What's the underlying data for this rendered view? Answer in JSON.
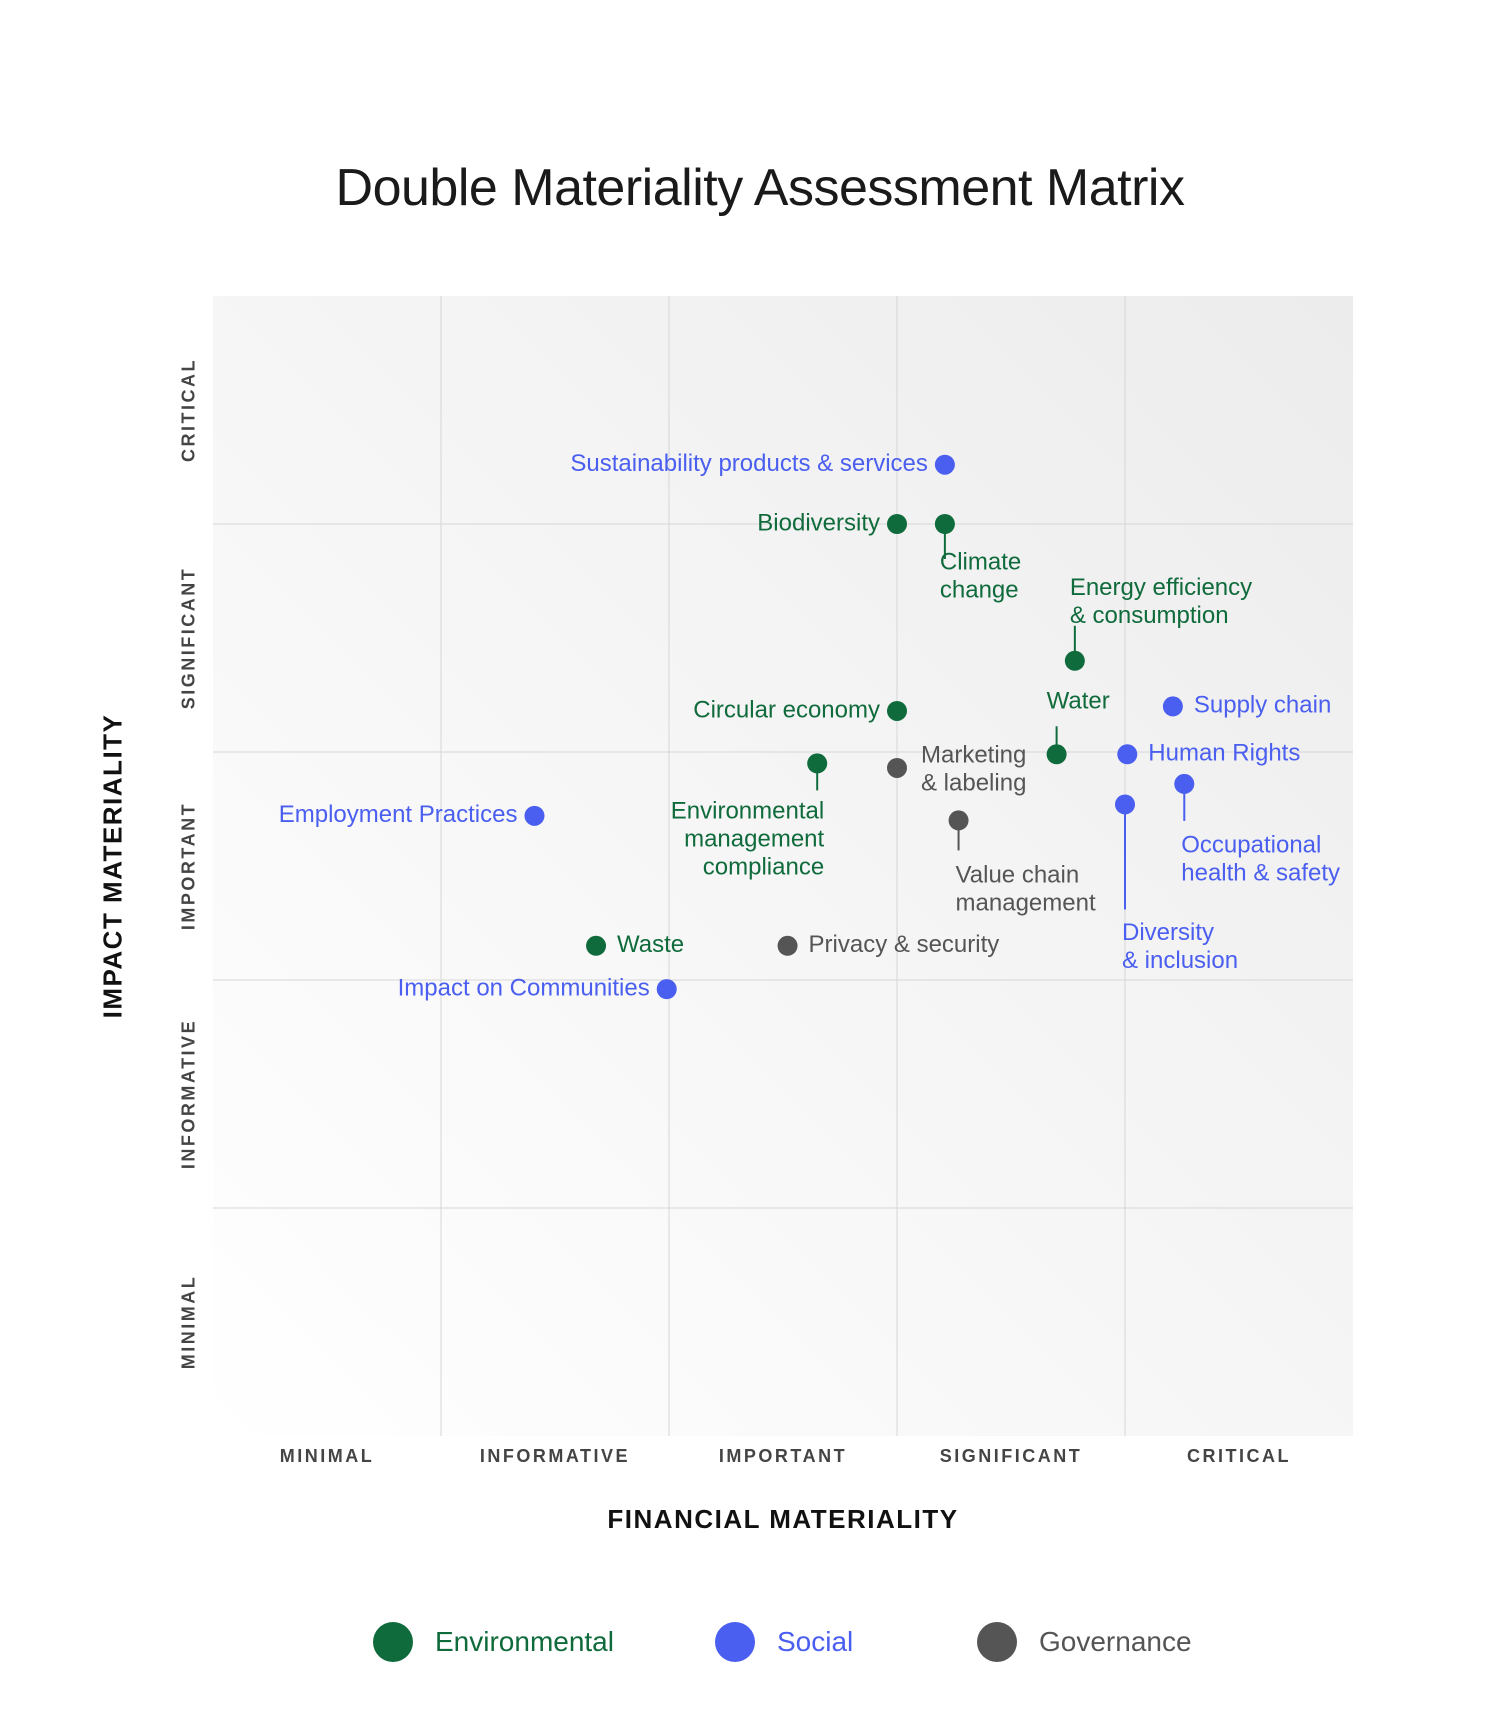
{
  "chart_data": {
    "type": "scatter",
    "title": "Double Materiality Assessment Matrix",
    "xlabel": "FINANCIAL MATERIALITY",
    "ylabel": "IMPACT MATERIALITY",
    "x_categories": [
      "MINIMAL",
      "INFORMATIVE",
      "IMPORTANT",
      "SIGNIFICANT",
      "CRITICAL"
    ],
    "y_categories": [
      "MINIMAL",
      "INFORMATIVE",
      "IMPORTANT",
      "SIGNIFICANT",
      "CRITICAL"
    ],
    "xlim": [
      0,
      5
    ],
    "ylim": [
      0,
      5
    ],
    "grid": true,
    "legend_position": "bottom",
    "colors": {
      "Environmental": "#106b3c",
      "Social": "#4a5ef0",
      "Governance": "#555555"
    },
    "series": [
      {
        "name": "Environmental",
        "points": [
          {
            "label": "Biodiversity",
            "x": 3.0,
            "y": 4.0
          },
          {
            "label": "Climate change",
            "x": 3.21,
            "y": 4.0
          },
          {
            "label": "Energy efficiency & consumption",
            "x": 3.78,
            "y": 3.4
          },
          {
            "label": "Circular economy",
            "x": 3.0,
            "y": 3.18
          },
          {
            "label": "Water",
            "x": 3.7,
            "y": 2.99
          },
          {
            "label": "Environmental management compliance",
            "x": 2.65,
            "y": 2.95
          },
          {
            "label": "Waste",
            "x": 1.68,
            "y": 2.15
          }
        ]
      },
      {
        "name": "Social",
        "points": [
          {
            "label": "Sustainability products & services",
            "x": 3.21,
            "y": 4.26
          },
          {
            "label": "Supply chain",
            "x": 4.21,
            "y": 3.2
          },
          {
            "label": "Human Rights",
            "x": 4.01,
            "y": 2.99
          },
          {
            "label": "Occupational health & safety",
            "x": 4.26,
            "y": 2.86
          },
          {
            "label": "Diversity & inclusion",
            "x": 4.0,
            "y": 2.77
          },
          {
            "label": "Employment Practices",
            "x": 1.41,
            "y": 2.72
          },
          {
            "label": "Impact on Communities",
            "x": 1.99,
            "y": 1.96
          }
        ]
      },
      {
        "name": "Governance",
        "points": [
          {
            "label": "Marketing & labeling",
            "x": 3.0,
            "y": 2.93
          },
          {
            "label": "Value chain management",
            "x": 3.27,
            "y": 2.7
          },
          {
            "label": "Privacy & security",
            "x": 2.52,
            "y": 2.15
          }
        ]
      }
    ]
  }
}
